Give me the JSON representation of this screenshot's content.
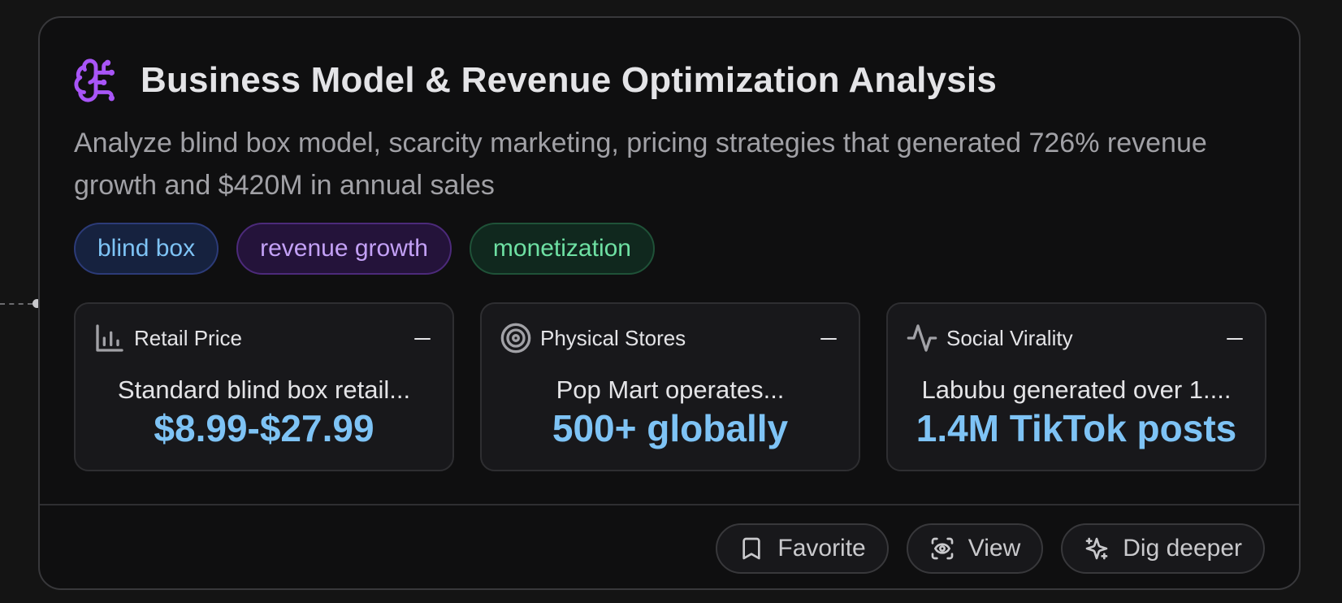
{
  "card": {
    "title": "Business Model & Revenue Optimization Analysis",
    "description": "Analyze blind box model, scarcity marketing, pricing strategies that generated 726% revenue growth and $420M in annual sales",
    "icon": "brain-icon",
    "icon_color": "#a855f7"
  },
  "tags": [
    {
      "label": "blind box",
      "color": "#7ec3f5"
    },
    {
      "label": "revenue growth",
      "color": "#c3a1f6"
    },
    {
      "label": "monetization",
      "color": "#6ee0a3"
    }
  ],
  "metrics": [
    {
      "label": "Retail Price",
      "icon": "bar-chart-icon",
      "description": "Standard blind box retail...",
      "value": "$8.99-$27.99"
    },
    {
      "label": "Physical Stores",
      "icon": "target-icon",
      "description": "Pop Mart operates...",
      "value": "500+ globally"
    },
    {
      "label": "Social Virality",
      "icon": "activity-icon",
      "description": "Labubu generated over 1....",
      "value": "1.4M TikTok posts"
    }
  ],
  "actions": {
    "favorite": "Favorite",
    "view": "View",
    "dig_deeper": "Dig deeper"
  },
  "colors": {
    "background": "#141414",
    "card": "#0f0f10",
    "accent_value": "#7ec3f5"
  }
}
